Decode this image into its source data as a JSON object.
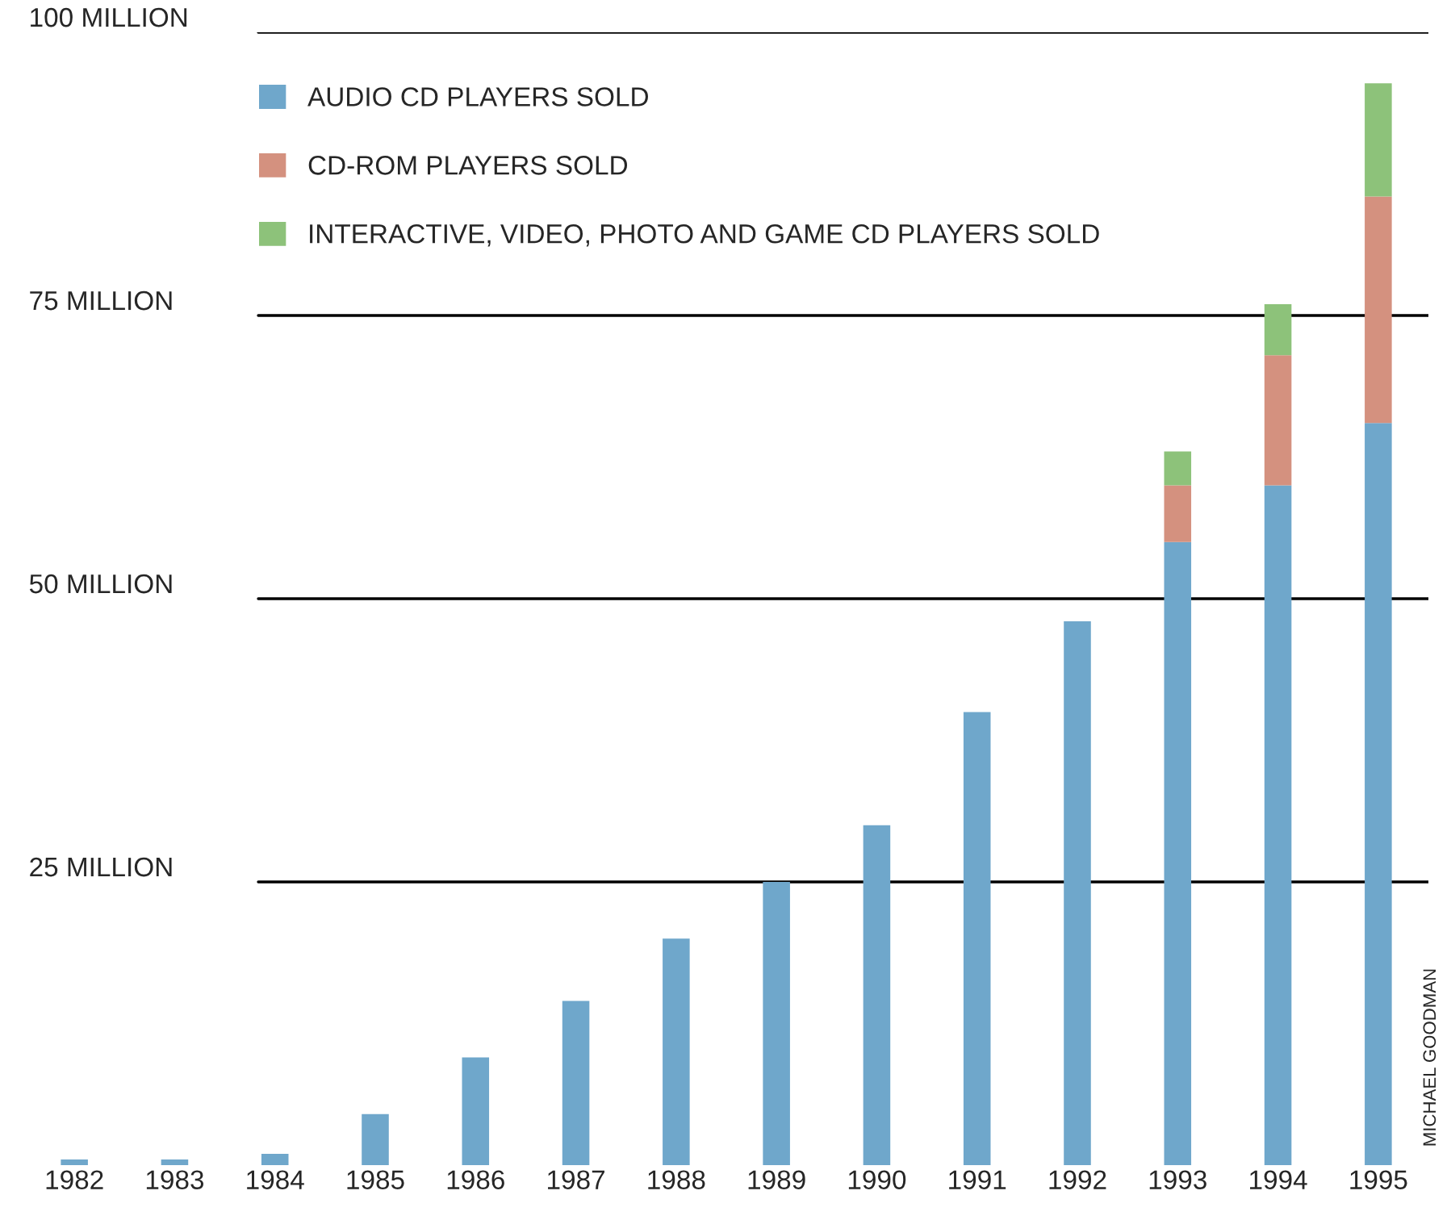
{
  "chart_data": {
    "type": "bar",
    "stacked": true,
    "categories": [
      "1982",
      "1983",
      "1984",
      "1985",
      "1986",
      "1987",
      "1988",
      "1989",
      "1990",
      "1991",
      "1992",
      "1993",
      "1994",
      "1995"
    ],
    "series": [
      {
        "name": "AUDIO CD PLAYERS SOLD",
        "color": "#6fa7cb",
        "values": [
          0.5,
          0.5,
          1,
          4.5,
          9.5,
          14.5,
          20,
          25,
          30,
          40,
          48,
          55,
          60,
          65.5
        ]
      },
      {
        "name": "CD-ROM PLAYERS SOLD",
        "color": "#d4917f",
        "values": [
          null,
          null,
          null,
          null,
          null,
          null,
          null,
          null,
          null,
          null,
          null,
          5,
          11.5,
          20
        ]
      },
      {
        "name": "INTERACTIVE, VIDEO, PHOTO AND GAME CD PLAYERS SOLD",
        "color": "#8dc27a",
        "values": [
          null,
          null,
          null,
          null,
          null,
          null,
          null,
          null,
          null,
          null,
          null,
          3,
          4.5,
          10
        ]
      }
    ],
    "ylim": [
      0,
      100
    ],
    "yticks": [
      {
        "value": 25,
        "label": "25 MILLION"
      },
      {
        "value": 50,
        "label": "50 MILLION"
      },
      {
        "value": 75,
        "label": "75 MILLION"
      },
      {
        "value": 100,
        "label": "100 MILLION"
      }
    ],
    "grid": "y",
    "legend": "top left",
    "annotations": [
      "MICHAEL GOODMAN"
    ]
  }
}
